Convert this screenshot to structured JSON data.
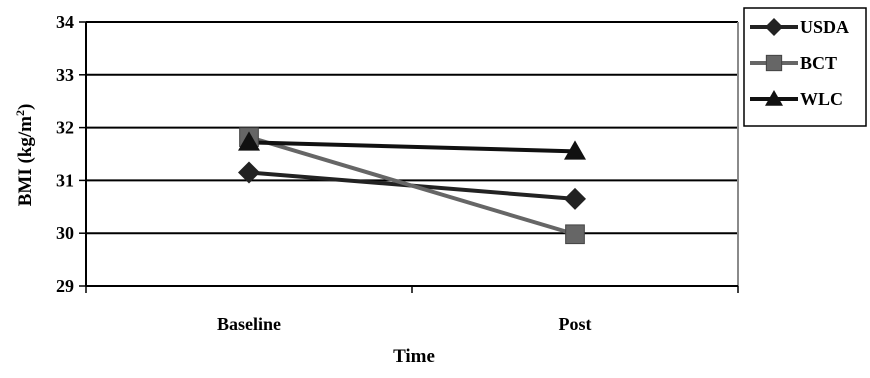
{
  "chart_data": {
    "type": "line",
    "categories": [
      "Baseline",
      "Post"
    ],
    "series": [
      {
        "name": "USDA",
        "values": [
          31.15,
          30.65
        ],
        "color": "#222222",
        "marker": "diamond"
      },
      {
        "name": "BCT",
        "values": [
          31.82,
          29.98
        ],
        "color": "#666666",
        "marker": "square"
      },
      {
        "name": "WLC",
        "values": [
          31.72,
          31.55
        ],
        "color": "#111111",
        "marker": "triangle"
      }
    ],
    "xlabel": "Time",
    "ylabel": "BMI (kg/m²)",
    "ylabel_parts": {
      "main": "BMI (kg/m",
      "superscript": "2",
      "close": ")"
    },
    "ylim": [
      29,
      34
    ],
    "yticks": [
      29,
      30,
      31,
      32,
      33,
      34
    ],
    "grid": true,
    "legend_position": "top-right"
  }
}
